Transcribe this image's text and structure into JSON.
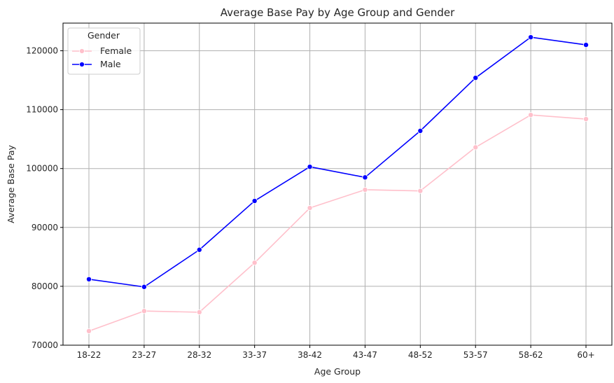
{
  "chart_data": {
    "type": "line",
    "title": "Average Base Pay by Age Group and Gender",
    "xlabel": "Age Group",
    "ylabel": "Average Base Pay",
    "categories": [
      "18-22",
      "23-27",
      "28-32",
      "33-37",
      "38-42",
      "43-47",
      "48-52",
      "53-57",
      "58-62",
      "60+"
    ],
    "ylim": [
      70000,
      125000
    ],
    "yticks": [
      70000,
      80000,
      90000,
      100000,
      110000,
      120000
    ],
    "grid": true,
    "legend": {
      "title": "Gender",
      "placement": "top-left"
    },
    "series": [
      {
        "name": "Female",
        "color": "#ffc0cb",
        "values": [
          72400,
          75800,
          75600,
          84000,
          93300,
          96400,
          96200,
          103600,
          109100,
          108400
        ]
      },
      {
        "name": "Male",
        "color": "#0000ff",
        "values": [
          81200,
          79900,
          86200,
          94500,
          100300,
          98500,
          106400,
          115400,
          122300,
          121000
        ]
      }
    ]
  }
}
